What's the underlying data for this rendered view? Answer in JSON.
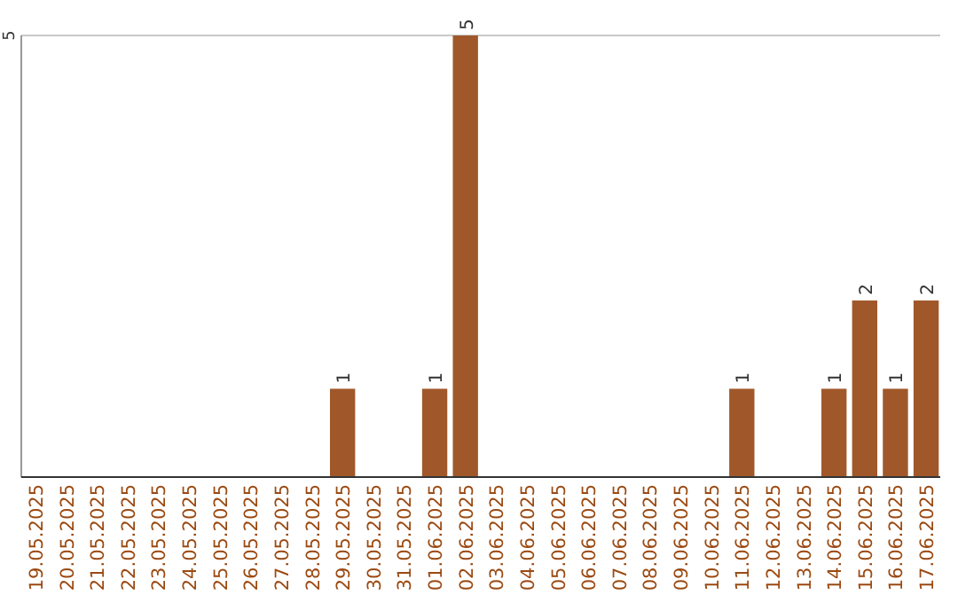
{
  "chart_data": {
    "type": "bar",
    "categories": [
      "19.05.2025",
      "20.05.2025",
      "21.05.2025",
      "22.05.2025",
      "23.05.2025",
      "24.05.2025",
      "25.05.2025",
      "26.05.2025",
      "27.05.2025",
      "28.05.2025",
      "29.05.2025",
      "30.05.2025",
      "31.05.2025",
      "01.06.2025",
      "02.06.2025",
      "03.06.2025",
      "04.06.2025",
      "05.06.2025",
      "06.06.2025",
      "07.06.2025",
      "08.06.2025",
      "09.06.2025",
      "10.06.2025",
      "11.06.2025",
      "12.06.2025",
      "13.06.2025",
      "14.06.2025",
      "15.06.2025",
      "16.06.2025",
      "17.06.2025"
    ],
    "values": [
      0,
      0,
      0,
      0,
      0,
      0,
      0,
      0,
      0,
      0,
      1,
      0,
      0,
      1,
      5,
      0,
      0,
      0,
      0,
      0,
      0,
      0,
      0,
      1,
      0,
      0,
      1,
      2,
      1,
      2
    ],
    "value_labels": [
      null,
      null,
      null,
      null,
      null,
      null,
      null,
      null,
      null,
      null,
      "1",
      null,
      null,
      "1",
      "5",
      null,
      null,
      null,
      null,
      null,
      null,
      null,
      null,
      "1",
      null,
      null,
      "1",
      "2",
      "1",
      "2"
    ],
    "color": "#a0582a",
    "ylim": [
      0,
      5
    ],
    "yticks": [
      5
    ]
  }
}
